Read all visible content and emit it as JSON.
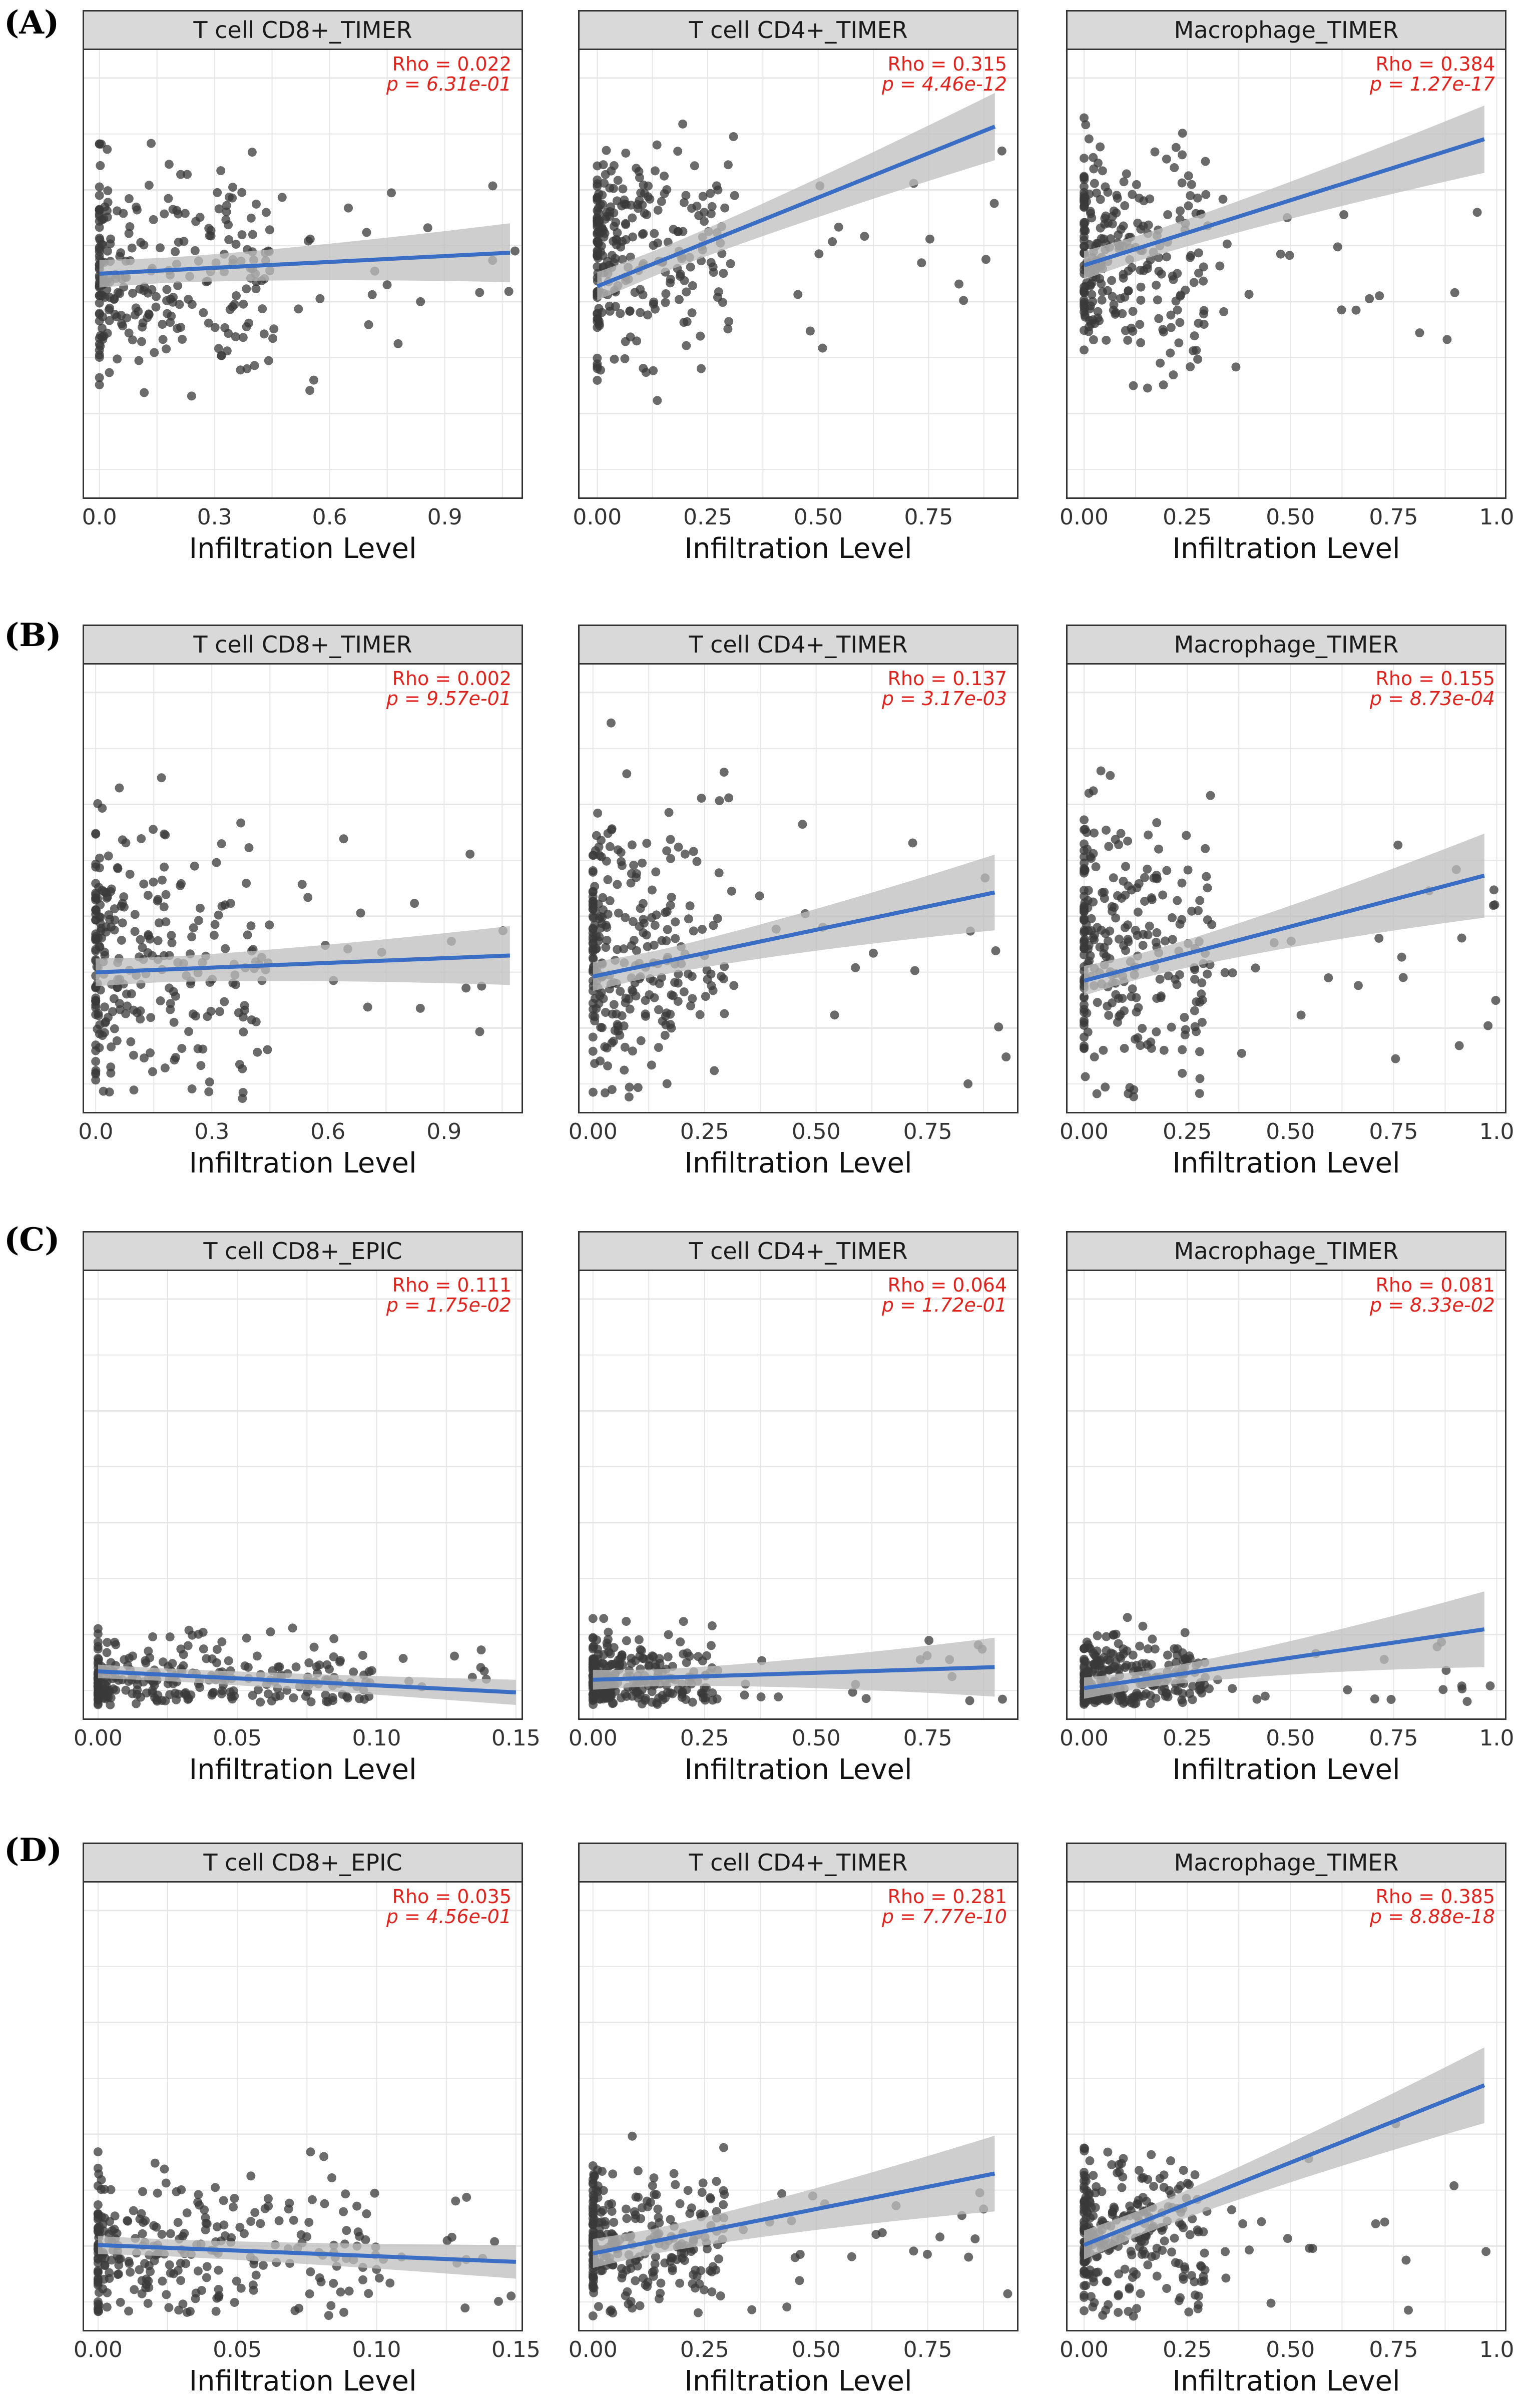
{
  "figure": {
    "row_labels": [
      "(A)",
      "(B)",
      "(C)",
      "(D)"
    ],
    "x_axis_title": "Infiltration Level"
  },
  "colors": {
    "point": "#3a3a3a",
    "line": "#3a6dc4",
    "band": "#bdbdbd",
    "grid": "#e6e6e6",
    "strip": "#d9d9d9",
    "stat": "#e0221c"
  },
  "chart_data": [
    {
      "type": "scatter",
      "row": "A",
      "title": "T cell CD8+_TIMER",
      "rho_text": "Rho = 0.022",
      "p_text": "p = 6.31e-01",
      "xlim": [
        -0.04,
        1.1
      ],
      "xticks": [
        "0.0",
        "0.3",
        "0.6",
        "0.9"
      ],
      "tick_values": [
        0,
        0.3,
        0.6,
        0.9
      ],
      "xlabel": "Infiltration Level",
      "fit": {
        "x0": 0.0,
        "x1": 1.07,
        "y0": 0.5,
        "y1": 0.55
      },
      "band": {
        "w0": 0.03,
        "w1": 0.07
      },
      "cloud": {
        "xmax": 0.45,
        "n": 280,
        "ymean": 0.5,
        "ysd": 0.13,
        "seed": 11
      }
    },
    {
      "type": "scatter",
      "row": "A",
      "title": "T cell CD4+_TIMER",
      "rho_text": "Rho = 0.315",
      "p_text": "p = 4.46e-12",
      "xlim": [
        -0.04,
        0.95
      ],
      "xticks": [
        "0.00",
        "0.25",
        "0.50",
        "0.75"
      ],
      "tick_values": [
        0,
        0.25,
        0.5,
        0.75
      ],
      "xlabel": "Infiltration Level",
      "fit": {
        "x0": 0.0,
        "x1": 0.9,
        "y0": 0.47,
        "y1": 0.85
      },
      "band": {
        "w0": 0.03,
        "w1": 0.08
      },
      "cloud": {
        "xmax": 0.3,
        "n": 280,
        "ymean": 0.55,
        "ysd": 0.13,
        "seed": 12
      }
    },
    {
      "type": "scatter",
      "row": "A",
      "title": "Macrophage_TIMER",
      "rho_text": "Rho = 0.384",
      "p_text": "p = 1.27e-17",
      "xlim": [
        -0.04,
        1.02
      ],
      "xticks": [
        "0.00",
        "0.25",
        "0.50",
        "0.75",
        "1.0"
      ],
      "tick_values": [
        0,
        0.25,
        0.5,
        0.75,
        1.0
      ],
      "xlabel": "Infiltration Level",
      "fit": {
        "x0": 0.0,
        "x1": 0.97,
        "y0": 0.52,
        "y1": 0.82
      },
      "band": {
        "w0": 0.03,
        "w1": 0.08
      },
      "cloud": {
        "xmax": 0.3,
        "n": 280,
        "ymean": 0.55,
        "ysd": 0.13,
        "seed": 13
      }
    },
    {
      "type": "scatter",
      "row": "B",
      "title": "T cell CD8+_TIMER",
      "rho_text": "Rho =  0.002",
      "p_text": "p = 9.57e-01",
      "xlim": [
        -0.03,
        1.1
      ],
      "xticks": [
        "0.0",
        "0.3",
        "0.6",
        "0.9"
      ],
      "tick_values": [
        0,
        0.3,
        0.6,
        0.9
      ],
      "xlabel": "Infiltration Level",
      "fit": {
        "x0": 0.0,
        "x1": 1.07,
        "y0": 0.3,
        "y1": 0.34
      },
      "band": {
        "w0": 0.03,
        "w1": 0.07
      },
      "cloud": {
        "xmax": 0.45,
        "n": 280,
        "ymean": 0.35,
        "ysd": 0.16,
        "seed": 21
      }
    },
    {
      "type": "scatter",
      "row": "B",
      "title": "T cell CD4+_TIMER",
      "rho_text": "Rho = 0.137",
      "p_text": "p = 3.17e-03",
      "xlim": [
        -0.03,
        0.95
      ],
      "xticks": [
        "0.00",
        "0.25",
        "0.50",
        "0.75"
      ],
      "tick_values": [
        0,
        0.25,
        0.5,
        0.75
      ],
      "xlabel": "Infiltration Level",
      "fit": {
        "x0": 0.0,
        "x1": 0.9,
        "y0": 0.29,
        "y1": 0.49
      },
      "band": {
        "w0": 0.03,
        "w1": 0.09
      },
      "cloud": {
        "xmax": 0.3,
        "n": 280,
        "ymean": 0.35,
        "ysd": 0.16,
        "seed": 22
      }
    },
    {
      "type": "scatter",
      "row": "B",
      "title": "Macrophage_TIMER",
      "rho_text": "Rho = 0.155",
      "p_text": "p = 8.73e-04",
      "xlim": [
        -0.04,
        1.02
      ],
      "xticks": [
        "0.00",
        "0.25",
        "0.50",
        "0.75",
        "1.0"
      ],
      "tick_values": [
        0,
        0.25,
        0.5,
        0.75,
        1.0
      ],
      "xlabel": "Infiltration Level",
      "fit": {
        "x0": 0.0,
        "x1": 0.97,
        "y0": 0.28,
        "y1": 0.53
      },
      "band": {
        "w0": 0.03,
        "w1": 0.1
      },
      "cloud": {
        "xmax": 0.3,
        "n": 280,
        "ymean": 0.35,
        "ysd": 0.16,
        "seed": 23
      }
    },
    {
      "type": "scatter",
      "row": "C",
      "title": "T cell CD8+_EPIC",
      "rho_text": "Rho =  0.111",
      "p_text": "p = 1.75e-02",
      "xlim": [
        -0.005,
        0.152
      ],
      "xticks": [
        "0.00",
        "0.05",
        "0.10",
        "0.15"
      ],
      "tick_values": [
        0,
        0.05,
        0.1,
        0.15
      ],
      "xlabel": "Infiltration Level",
      "fit": {
        "x0": 0.0,
        "x1": 0.15,
        "y0": 0.08,
        "y1": 0.03
      },
      "band": {
        "w0": 0.015,
        "w1": 0.03
      },
      "cloud": {
        "xmax": 0.1,
        "n": 280,
        "ymean": 0.06,
        "ysd": 0.05,
        "seed": 31
      }
    },
    {
      "type": "scatter",
      "row": "C",
      "title": "T cell CD4+_TIMER",
      "rho_text": "Rho = 0.064",
      "p_text": "p = 1.72e-01",
      "xlim": [
        -0.03,
        0.95
      ],
      "xticks": [
        "0.00",
        "0.25",
        "0.50",
        "0.75"
      ],
      "tick_values": [
        0,
        0.25,
        0.5,
        0.75
      ],
      "xlabel": "Infiltration Level",
      "fit": {
        "x0": 0.0,
        "x1": 0.9,
        "y0": 0.06,
        "y1": 0.09
      },
      "band": {
        "w0": 0.02,
        "w1": 0.07
      },
      "cloud": {
        "xmax": 0.28,
        "n": 280,
        "ymean": 0.06,
        "ysd": 0.05,
        "seed": 32
      }
    },
    {
      "type": "scatter",
      "row": "C",
      "title": "Macrophage_TIMER",
      "rho_text": "Rho = 0.081",
      "p_text": "p = 8.33e-02",
      "xlim": [
        -0.04,
        1.02
      ],
      "xticks": [
        "0.00",
        "0.25",
        "0.50",
        "0.75",
        "1.0"
      ],
      "tick_values": [
        0,
        0.25,
        0.5,
        0.75,
        1.0
      ],
      "xlabel": "Infiltration Level",
      "fit": {
        "x0": 0.0,
        "x1": 0.97,
        "y0": 0.04,
        "y1": 0.18
      },
      "band": {
        "w0": 0.02,
        "w1": 0.09
      },
      "cloud": {
        "xmax": 0.3,
        "n": 280,
        "ymean": 0.06,
        "ysd": 0.05,
        "seed": 33
      }
    },
    {
      "type": "scatter",
      "row": "D",
      "title": "T cell CD8+_EPIC",
      "rho_text": "Rho =  0.035",
      "p_text": "p = 4.56e-01",
      "xlim": [
        -0.005,
        0.152
      ],
      "xticks": [
        "0.00",
        "0.05",
        "0.10",
        "0.15"
      ],
      "tick_values": [
        0,
        0.05,
        0.1,
        0.15
      ],
      "xlabel": "Infiltration Level",
      "fit": {
        "x0": 0.0,
        "x1": 0.15,
        "y0": 0.17,
        "y1": 0.13
      },
      "band": {
        "w0": 0.02,
        "w1": 0.04
      },
      "cloud": {
        "xmax": 0.1,
        "n": 280,
        "ymean": 0.15,
        "ysd": 0.09,
        "seed": 41
      }
    },
    {
      "type": "scatter",
      "row": "D",
      "title": "T cell CD4+_TIMER",
      "rho_text": "Rho = 0.281",
      "p_text": "p = 7.77e-10",
      "xlim": [
        -0.03,
        0.95
      ],
      "xticks": [
        "0.00",
        "0.25",
        "0.50",
        "0.75"
      ],
      "tick_values": [
        0,
        0.25,
        0.5,
        0.75
      ],
      "xlabel": "Infiltration Level",
      "fit": {
        "x0": 0.0,
        "x1": 0.9,
        "y0": 0.15,
        "y1": 0.34
      },
      "band": {
        "w0": 0.03,
        "w1": 0.09
      },
      "cloud": {
        "xmax": 0.3,
        "n": 280,
        "ymean": 0.18,
        "ysd": 0.09,
        "seed": 42
      }
    },
    {
      "type": "scatter",
      "row": "D",
      "title": "Macrophage_TIMER",
      "rho_text": "Rho = 0.385",
      "p_text": "p = 8.88e-18",
      "xlim": [
        -0.04,
        1.02
      ],
      "xticks": [
        "0.00",
        "0.25",
        "0.50",
        "0.75",
        "1.0"
      ],
      "tick_values": [
        0,
        0.25,
        0.5,
        0.75,
        1.0
      ],
      "xlabel": "Infiltration Level",
      "fit": {
        "x0": 0.0,
        "x1": 0.97,
        "y0": 0.17,
        "y1": 0.55
      },
      "band": {
        "w0": 0.03,
        "w1": 0.09
      },
      "cloud": {
        "xmax": 0.3,
        "n": 280,
        "ymean": 0.2,
        "ysd": 0.1,
        "seed": 43
      }
    }
  ]
}
